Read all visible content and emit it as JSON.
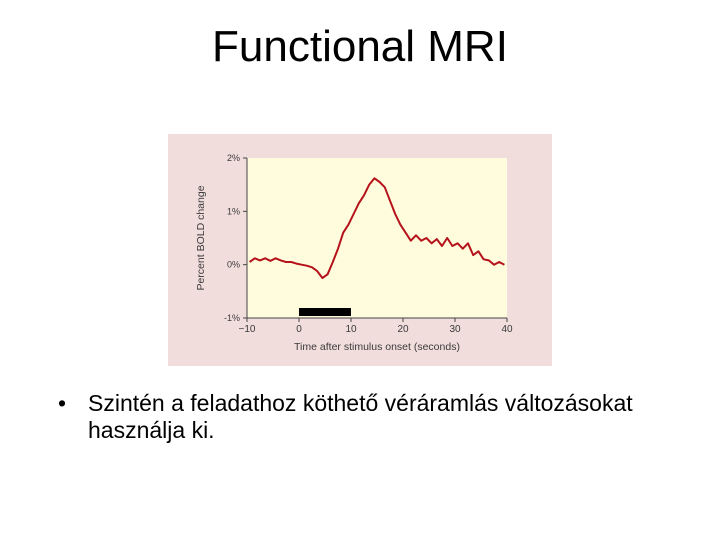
{
  "slide": {
    "title": "Functional MRI",
    "bullet_marker": "•",
    "bullet_text": "Szintén a feladathoz köthető véráramlás változásokat használja ki."
  },
  "colors": {
    "figure_background": "#f2dddd",
    "plot_background": "#fefcdc",
    "line": "#b5121b",
    "stimulus_bar": "#000000"
  },
  "chart_data": {
    "type": "line",
    "title": "",
    "xlabel": "Time after stimulus onset (seconds)",
    "ylabel": "Percent BOLD change",
    "xlim": [
      -10,
      40
    ],
    "ylim": [
      -1,
      2
    ],
    "xticks": [
      -10,
      0,
      10,
      20,
      30,
      40
    ],
    "xtick_labels": [
      "−10",
      "0",
      "10",
      "20",
      "30",
      "40"
    ],
    "yticks": [
      2,
      1,
      0,
      -1
    ],
    "ytick_labels": [
      "2%",
      "1%",
      "0%",
      "-1%"
    ],
    "grid": false,
    "stimulus_interval": [
      0,
      10
    ],
    "series": [
      {
        "x": [
          -9.5,
          -8.5,
          -7.5,
          -6.5,
          -5.5,
          -4.5,
          -3.5,
          -2.5,
          -1.5,
          -0.5,
          0.5,
          1.5,
          2.5,
          3.5,
          4.5,
          5.5,
          6.5,
          7.5,
          8.5,
          9.5,
          10.5,
          11.5,
          12.5,
          13.5,
          14.5,
          15.5,
          16.5,
          17.5,
          18.5,
          19.5,
          20.5,
          21.5,
          22.5,
          23.5,
          24.5,
          25.5,
          26.5,
          27.5,
          28.5,
          29.5,
          30.5,
          31.5,
          32.5,
          33.5,
          34.5,
          35.5,
          36.5,
          37.5,
          38.5,
          39.5
        ],
        "y": [
          0.05,
          0.12,
          0.08,
          0.12,
          0.07,
          0.12,
          0.08,
          0.05,
          0.05,
          0.02,
          0.0,
          -0.02,
          -0.05,
          -0.12,
          -0.25,
          -0.18,
          0.05,
          0.3,
          0.6,
          0.75,
          0.95,
          1.15,
          1.3,
          1.5,
          1.62,
          1.55,
          1.45,
          1.2,
          0.95,
          0.75,
          0.6,
          0.45,
          0.55,
          0.45,
          0.5,
          0.4,
          0.48,
          0.35,
          0.5,
          0.35,
          0.4,
          0.3,
          0.4,
          0.18,
          0.25,
          0.1,
          0.08,
          0.0,
          0.05,
          0.0
        ]
      }
    ]
  }
}
